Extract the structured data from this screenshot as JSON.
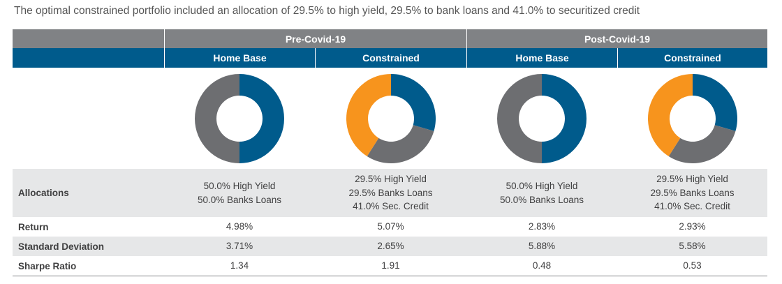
{
  "title": "The optimal constrained portfolio included an allocation of 29.5% to high yield, 29.5% to bank loans and 41.0% to securitized credit",
  "colors": {
    "high_yield": "#005b8c",
    "bank_loans": "#6d6e71",
    "sec_credit": "#f7941d",
    "header_group": "#808285",
    "header_sub": "#005b8c",
    "row_shade": "#e6e7e8"
  },
  "groups": [
    "Pre-Covid-19",
    "Post-Covid-19"
  ],
  "subheaders": [
    "Home Base",
    "Constrained",
    "Home Base",
    "Constrained"
  ],
  "rows": [
    {
      "label": "Allocations",
      "cells": [
        [
          "50.0% High Yield",
          "50.0% Banks Loans"
        ],
        [
          "29.5% High Yield",
          "29.5% Banks Loans",
          "41.0% Sec. Credit"
        ],
        [
          "50.0% High Yield",
          "50.0% Banks Loans"
        ],
        [
          "29.5% High Yield",
          "29.5% Banks Loans",
          "41.0% Sec. Credit"
        ]
      ]
    },
    {
      "label": "Return",
      "cells": [
        "4.98%",
        "5.07%",
        "2.83%",
        "2.93%"
      ]
    },
    {
      "label": "Standard Deviation",
      "cells": [
        "3.71%",
        "2.65%",
        "5.88%",
        "5.58%"
      ]
    },
    {
      "label": "Sharpe Ratio",
      "cells": [
        "1.34",
        "1.91",
        "0.48",
        "0.53"
      ]
    }
  ],
  "chart_data": [
    {
      "type": "pie",
      "variant": "donut",
      "period": "Pre-Covid-19",
      "portfolio": "Home Base",
      "slices": [
        {
          "name": "High Yield",
          "value": 50.0
        },
        {
          "name": "Banks Loans",
          "value": 50.0
        }
      ]
    },
    {
      "type": "pie",
      "variant": "donut",
      "period": "Pre-Covid-19",
      "portfolio": "Constrained",
      "slices": [
        {
          "name": "High Yield",
          "value": 29.5
        },
        {
          "name": "Banks Loans",
          "value": 29.5
        },
        {
          "name": "Sec. Credit",
          "value": 41.0
        }
      ]
    },
    {
      "type": "pie",
      "variant": "donut",
      "period": "Post-Covid-19",
      "portfolio": "Home Base",
      "slices": [
        {
          "name": "High Yield",
          "value": 50.0
        },
        {
          "name": "Banks Loans",
          "value": 50.0
        }
      ]
    },
    {
      "type": "pie",
      "variant": "donut",
      "period": "Post-Covid-19",
      "portfolio": "Constrained",
      "slices": [
        {
          "name": "High Yield",
          "value": 29.5
        },
        {
          "name": "Banks Loans",
          "value": 29.5
        },
        {
          "name": "Sec. Credit",
          "value": 41.0
        }
      ]
    }
  ]
}
